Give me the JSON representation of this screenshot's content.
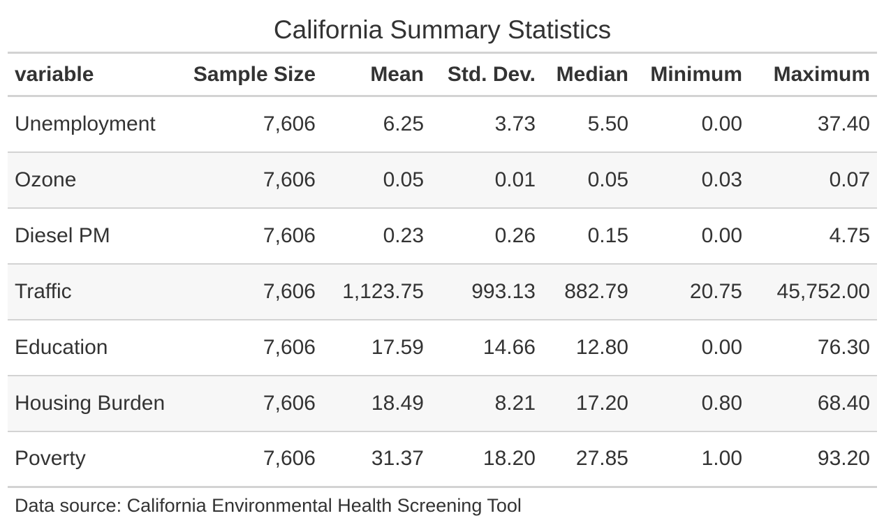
{
  "table": {
    "title": "California Summary Statistics",
    "columns": [
      "variable",
      "Sample Size",
      "Mean",
      "Std. Dev.",
      "Median",
      "Minimum",
      "Maximum"
    ],
    "rows": [
      [
        "Unemployment",
        "7,606",
        "6.25",
        "3.73",
        "5.50",
        "0.00",
        "37.40"
      ],
      [
        "Ozone",
        "7,606",
        "0.05",
        "0.01",
        "0.05",
        "0.03",
        "0.07"
      ],
      [
        "Diesel PM",
        "7,606",
        "0.23",
        "0.26",
        "0.15",
        "0.00",
        "4.75"
      ],
      [
        "Traffic",
        "7,606",
        "1,123.75",
        "993.13",
        "882.79",
        "20.75",
        "45,752.00"
      ],
      [
        "Education",
        "7,606",
        "17.59",
        "14.66",
        "12.80",
        "0.00",
        "76.30"
      ],
      [
        "Housing Burden",
        "7,606",
        "18.49",
        "8.21",
        "17.20",
        "0.80",
        "68.40"
      ],
      [
        "Poverty",
        "7,606",
        "31.37",
        "18.20",
        "27.85",
        "1.00",
        "93.20"
      ]
    ],
    "source_note": "Data source: California Environmental Health Screening Tool"
  },
  "colors": {
    "text": "#333333",
    "rule": "#d3d3d3",
    "stripe": "#f7f7f7"
  }
}
